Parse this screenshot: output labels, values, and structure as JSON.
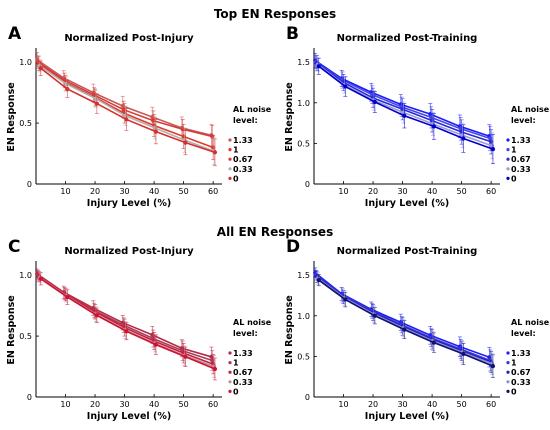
{
  "section_titles": [
    "Top EN Responses",
    "All EN Responses"
  ],
  "chart_data": [
    {
      "panel": "A",
      "type": "line",
      "title": "Normalized Post-Injury",
      "xlabel": "Injury Level (%)",
      "ylabel": "EN Response",
      "xlim": [
        0,
        63
      ],
      "ylim": [
        0,
        1.1
      ],
      "xticks": [
        "10",
        "20",
        "30",
        "40",
        "50",
        "60"
      ],
      "yticks": [
        "0",
        "0.5",
        "1.0"
      ],
      "legend_title": "AL noise level:",
      "x": [
        1,
        10,
        20,
        30,
        40,
        50,
        60
      ],
      "series": [
        {
          "name": "1.33",
          "color": "#c85a5a",
          "values": [
            1.02,
            0.87,
            0.75,
            0.64,
            0.55,
            0.46,
            0.4
          ],
          "errors": [
            0.06,
            0.06,
            0.07,
            0.08,
            0.08,
            0.09,
            0.09
          ]
        },
        {
          "name": "1",
          "color": "#d23c3c",
          "values": [
            1.0,
            0.85,
            0.73,
            0.61,
            0.52,
            0.45,
            0.39
          ],
          "errors": [
            0.05,
            0.06,
            0.06,
            0.07,
            0.08,
            0.08,
            0.09
          ]
        },
        {
          "name": "0.67",
          "color": "#e03a2a",
          "values": [
            0.99,
            0.83,
            0.71,
            0.58,
            0.48,
            0.39,
            0.3
          ],
          "errors": [
            0.06,
            0.06,
            0.07,
            0.08,
            0.09,
            0.1,
            0.1
          ]
        },
        {
          "name": "0.33",
          "color": "#b0b0b0",
          "values": [
            0.97,
            0.82,
            0.7,
            0.56,
            0.46,
            0.36,
            0.27
          ],
          "errors": [
            0.05,
            0.06,
            0.07,
            0.08,
            0.09,
            0.1,
            0.11
          ]
        },
        {
          "name": "0",
          "color": "#d43030",
          "values": [
            0.95,
            0.78,
            0.66,
            0.53,
            0.43,
            0.34,
            0.26
          ],
          "errors": [
            0.06,
            0.07,
            0.08,
            0.09,
            0.1,
            0.1,
            0.11
          ]
        }
      ]
    },
    {
      "panel": "B",
      "type": "line",
      "title": "Normalized Post-Training",
      "xlabel": "Injury Level (%)",
      "ylabel": "EN Response",
      "xlim": [
        0,
        63
      ],
      "ylim": [
        0,
        1.65
      ],
      "xticks": [
        "10",
        "20",
        "30",
        "40",
        "50",
        "60"
      ],
      "yticks": [
        "0",
        "0.5",
        "1.0",
        "1.5"
      ],
      "legend_title": "AL noise level:",
      "x": [
        1,
        10,
        20,
        30,
        40,
        50,
        60
      ],
      "series": [
        {
          "name": "1.33",
          "color": "#1a1aff",
          "values": [
            1.52,
            1.3,
            1.13,
            0.98,
            0.86,
            0.71,
            0.59
          ],
          "errors": [
            0.09,
            0.1,
            0.11,
            0.12,
            0.13,
            0.14,
            0.14
          ]
        },
        {
          "name": "1",
          "color": "#4646e0",
          "values": [
            1.5,
            1.28,
            1.1,
            0.95,
            0.82,
            0.68,
            0.56
          ],
          "errors": [
            0.08,
            0.1,
            0.11,
            0.12,
            0.13,
            0.14,
            0.15
          ]
        },
        {
          "name": "0.67",
          "color": "#2a2ad8",
          "values": [
            1.49,
            1.25,
            1.06,
            0.92,
            0.78,
            0.64,
            0.52
          ],
          "errors": [
            0.09,
            0.1,
            0.12,
            0.13,
            0.14,
            0.15,
            0.15
          ]
        },
        {
          "name": "0.33",
          "color": "#9a9ad8",
          "values": [
            1.47,
            1.22,
            1.03,
            0.88,
            0.74,
            0.6,
            0.47
          ],
          "errors": [
            0.08,
            0.1,
            0.12,
            0.13,
            0.14,
            0.15,
            0.16
          ]
        },
        {
          "name": "0",
          "color": "#0000cc",
          "values": [
            1.45,
            1.2,
            1.01,
            0.84,
            0.71,
            0.56,
            0.43
          ],
          "errors": [
            0.1,
            0.12,
            0.13,
            0.15,
            0.16,
            0.17,
            0.18
          ]
        }
      ]
    },
    {
      "panel": "C",
      "type": "line",
      "title": "Normalized Post-Injury",
      "xlabel": "Injury Level (%)",
      "ylabel": "EN Response",
      "xlim": [
        0,
        63
      ],
      "ylim": [
        0,
        1.1
      ],
      "xticks": [
        "10",
        "20",
        "30",
        "40",
        "50",
        "60"
      ],
      "yticks": [
        "0",
        "0.5",
        "1.0"
      ],
      "legend_title": "AL noise level:",
      "x": [
        1,
        10,
        20,
        30,
        40,
        50,
        60
      ],
      "series": [
        {
          "name": "1.33",
          "color": "#b82840",
          "values": [
            1.01,
            0.86,
            0.73,
            0.61,
            0.51,
            0.4,
            0.33
          ],
          "errors": [
            0.04,
            0.05,
            0.06,
            0.06,
            0.07,
            0.07,
            0.08
          ]
        },
        {
          "name": "1",
          "color": "#a04060",
          "values": [
            1.0,
            0.85,
            0.71,
            0.59,
            0.48,
            0.38,
            0.3
          ],
          "errors": [
            0.04,
            0.05,
            0.06,
            0.06,
            0.07,
            0.08,
            0.08
          ]
        },
        {
          "name": "0.67",
          "color": "#c81e3c",
          "values": [
            0.99,
            0.84,
            0.7,
            0.57,
            0.46,
            0.36,
            0.27
          ],
          "errors": [
            0.04,
            0.05,
            0.06,
            0.07,
            0.07,
            0.08,
            0.08
          ]
        },
        {
          "name": "0.33",
          "color": "#c09098",
          "values": [
            0.98,
            0.83,
            0.68,
            0.55,
            0.44,
            0.34,
            0.25
          ],
          "errors": [
            0.04,
            0.05,
            0.06,
            0.07,
            0.07,
            0.08,
            0.09
          ]
        },
        {
          "name": "0",
          "color": "#d01030",
          "values": [
            0.97,
            0.82,
            0.67,
            0.54,
            0.43,
            0.33,
            0.23
          ],
          "errors": [
            0.05,
            0.06,
            0.06,
            0.07,
            0.08,
            0.08,
            0.09
          ]
        }
      ]
    },
    {
      "panel": "D",
      "type": "line",
      "title": "Normalized Post-Training",
      "xlabel": "Injury Level (%)",
      "ylabel": "EN Response",
      "xlim": [
        0,
        63
      ],
      "ylim": [
        0,
        1.65
      ],
      "xticks": [
        "10",
        "20",
        "30",
        "40",
        "50",
        "60"
      ],
      "yticks": [
        "0",
        "0.5",
        "1.0",
        "1.5"
      ],
      "legend_title": "AL noise level:",
      "x": [
        1,
        10,
        20,
        30,
        40,
        50,
        60
      ],
      "series": [
        {
          "name": "1.33",
          "color": "#1e1eff",
          "values": [
            1.53,
            1.27,
            1.08,
            0.92,
            0.76,
            0.62,
            0.49
          ],
          "errors": [
            0.06,
            0.08,
            0.09,
            0.1,
            0.11,
            0.12,
            0.12
          ]
        },
        {
          "name": "1",
          "color": "#3a3ac8",
          "values": [
            1.5,
            1.25,
            1.06,
            0.89,
            0.73,
            0.59,
            0.45
          ],
          "errors": [
            0.06,
            0.08,
            0.09,
            0.1,
            0.11,
            0.12,
            0.13
          ]
        },
        {
          "name": "0.67",
          "color": "#2020d0",
          "values": [
            1.48,
            1.23,
            1.04,
            0.87,
            0.71,
            0.57,
            0.43
          ],
          "errors": [
            0.07,
            0.08,
            0.1,
            0.11,
            0.12,
            0.12,
            0.13
          ]
        },
        {
          "name": "0.33",
          "color": "#9090c8",
          "values": [
            1.46,
            1.22,
            1.02,
            0.85,
            0.69,
            0.55,
            0.41
          ],
          "errors": [
            0.07,
            0.09,
            0.1,
            0.11,
            0.12,
            0.13,
            0.13
          ]
        },
        {
          "name": "0",
          "color": "#101070",
          "values": [
            1.44,
            1.2,
            1.0,
            0.83,
            0.67,
            0.53,
            0.38
          ],
          "errors": [
            0.07,
            0.09,
            0.1,
            0.11,
            0.12,
            0.13,
            0.14
          ]
        }
      ]
    }
  ]
}
